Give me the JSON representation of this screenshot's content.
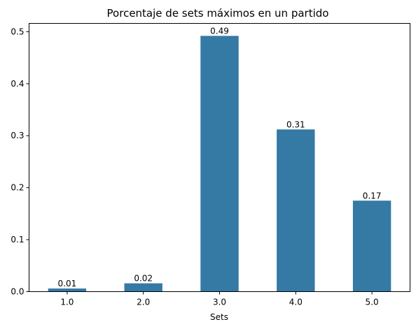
{
  "chart_data": {
    "type": "bar",
    "title": "Porcentaje de sets máximos en un partido",
    "xlabel": "Sets",
    "ylabel": "",
    "categories": [
      "1.0",
      "2.0",
      "3.0",
      "4.0",
      "5.0"
    ],
    "values": [
      0.006,
      0.016,
      0.492,
      0.312,
      0.175
    ],
    "data_labels": [
      "0.01",
      "0.02",
      "0.49",
      "0.31",
      "0.17"
    ],
    "yticks": [
      0.0,
      0.1,
      0.2,
      0.3,
      0.4,
      0.5
    ],
    "ytick_labels": [
      "0.0",
      "0.1",
      "0.2",
      "0.3",
      "0.4",
      "0.5"
    ],
    "ylim": [
      0,
      0.516
    ],
    "bar_color": "#3579a5",
    "grid": false,
    "legend": "none"
  }
}
